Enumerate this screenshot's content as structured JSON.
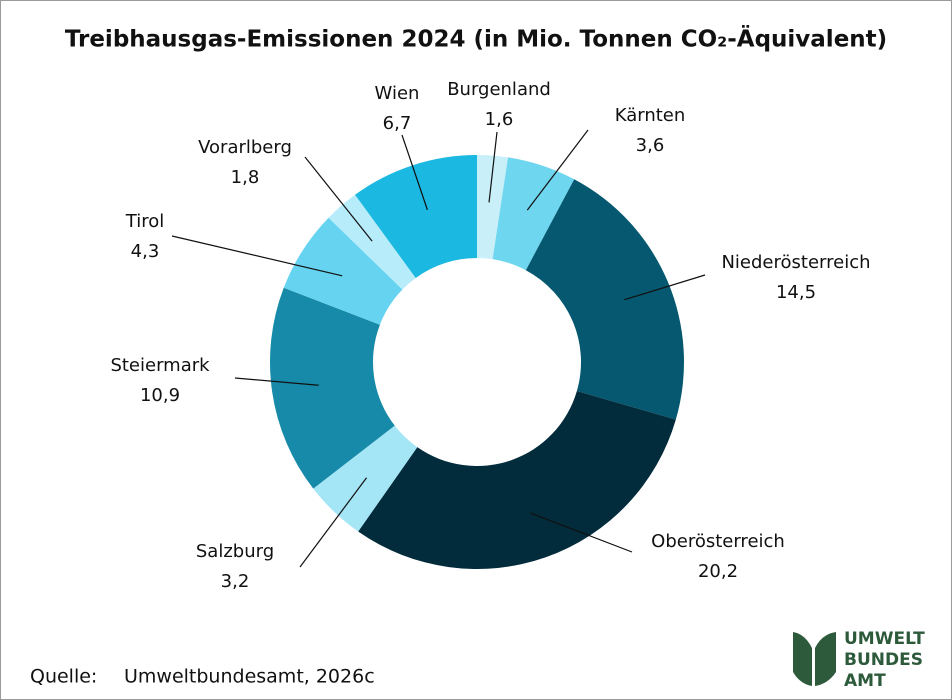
{
  "chart_data": {
    "type": "donut",
    "title": "Treibhausgas-Emissionen 2024 (in Mio. Tonnen CO₂-Äquivalent)",
    "categories": [
      "Burgenland",
      "Kärnten",
      "Niederösterreich",
      "Oberösterreich",
      "Salzburg",
      "Steiermark",
      "Tirol",
      "Vorarlberg",
      "Wien"
    ],
    "values": [
      1.6,
      3.6,
      14.5,
      20.2,
      3.2,
      10.9,
      4.3,
      1.8,
      6.7
    ],
    "value_labels": [
      "1,6",
      "3,6",
      "14,5",
      "20,2",
      "3,2",
      "10,9",
      "4,3",
      "1,8",
      "6,7"
    ],
    "colors": [
      "#c9eff9",
      "#6fd6ef",
      "#05586f",
      "#022b3b",
      "#a4e5f6",
      "#168aa8",
      "#66d3f1",
      "#b7ecfa",
      "#1bb8e1"
    ]
  },
  "footer": {
    "source_label": "Quelle:",
    "source": "Umweltbundesamt, 2026c",
    "logo": [
      "UMWELT",
      "BUNDES",
      "AMT"
    ]
  }
}
